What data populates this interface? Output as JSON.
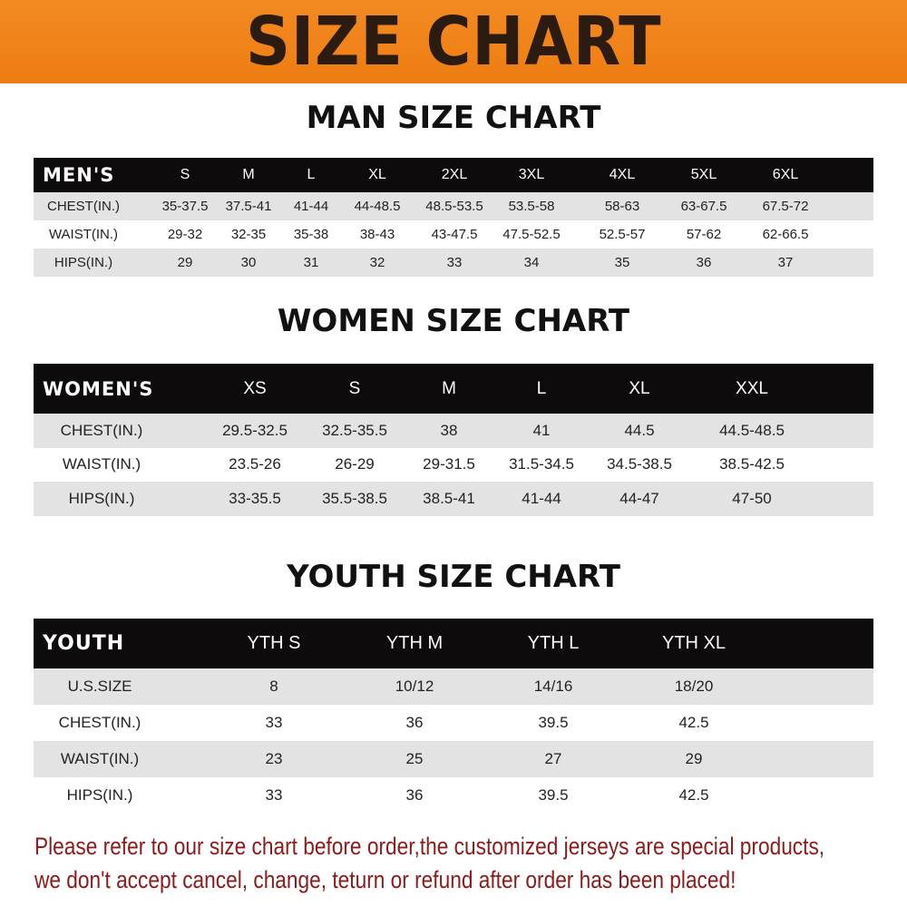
{
  "banner": {
    "title": "SIZE CHART"
  },
  "men": {
    "title": "MAN SIZE CHART",
    "corner": "MEN'S",
    "columns": [
      "S",
      "M",
      "L",
      "XL",
      "2XL",
      "3XL",
      "4XL",
      "5XL",
      "6XL"
    ],
    "rows": [
      {
        "label": "CHEST(IN.)",
        "values": [
          "35-37.5",
          "37.5-41",
          "41-44",
          "44-48.5",
          "48.5-53.5",
          "53.5-58",
          "58-63",
          "63-67.5",
          "67.5-72"
        ]
      },
      {
        "label": "WAIST(IN.)",
        "values": [
          "29-32",
          "32-35",
          "35-38",
          "38-43",
          "43-47.5",
          "47.5-52.5",
          "52.5-57",
          "57-62",
          "62-66.5"
        ]
      },
      {
        "label": "HIPS(IN.)",
        "values": [
          "29",
          "30",
          "31",
          "32",
          "33",
          "34",
          "35",
          "36",
          "37"
        ]
      }
    ]
  },
  "women": {
    "title": "WOMEN SIZE CHART",
    "corner": "WOMEN'S",
    "columns": [
      "XS",
      "S",
      "M",
      "L",
      "XL",
      "XXL"
    ],
    "rows": [
      {
        "label": "CHEST(IN.)",
        "values": [
          "29.5-32.5",
          "32.5-35.5",
          "38",
          "41",
          "44.5",
          "44.5-48.5"
        ]
      },
      {
        "label": "WAIST(IN.)",
        "values": [
          "23.5-26",
          "26-29",
          "29-31.5",
          "31.5-34.5",
          "34.5-38.5",
          "38.5-42.5"
        ]
      },
      {
        "label": "HIPS(IN.)",
        "values": [
          "33-35.5",
          "35.5-38.5",
          "38.5-41",
          "41-44",
          "44-47",
          "47-50"
        ]
      }
    ]
  },
  "youth": {
    "title": "YOUTH SIZE CHART",
    "corner": "YOUTH",
    "columns": [
      "YTH S",
      "YTH M",
      "YTH L",
      "YTH XL"
    ],
    "rows": [
      {
        "label": "U.S.SIZE",
        "values": [
          "8",
          "10/12",
          "14/16",
          "18/20"
        ]
      },
      {
        "label": "CHEST(IN.)",
        "values": [
          "33",
          "36",
          "39.5",
          "42.5"
        ]
      },
      {
        "label": "WAIST(IN.)",
        "values": [
          "23",
          "25",
          "27",
          "29"
        ]
      },
      {
        "label": "HIPS(IN.)",
        "values": [
          "33",
          "36",
          "39.5",
          "42.5"
        ]
      }
    ]
  },
  "notice": {
    "line1": "Please refer to our size chart before order,the customized jerseys are special products,",
    "line2": "we don't accept cancel, change, teturn or refund after order has been placed!"
  }
}
